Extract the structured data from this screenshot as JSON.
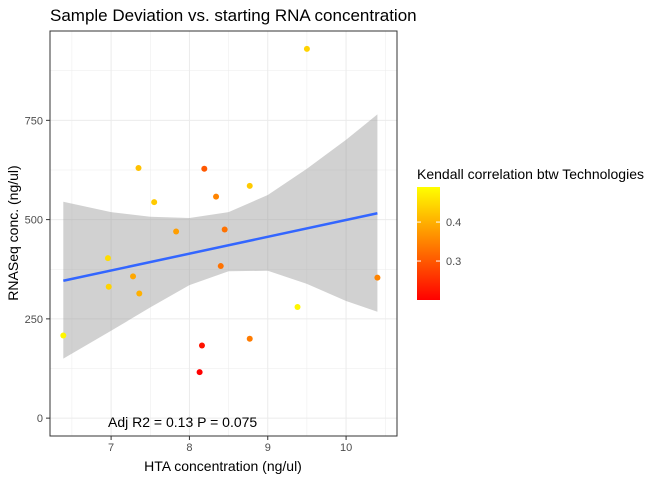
{
  "chart_data": {
    "type": "scatter",
    "title": "Sample Deviation vs. starting RNA concentration",
    "xlabel": "HTA concentration (ng/ul)",
    "ylabel": "RNASeq conc. (ng/ul)",
    "xlim": [
      6.22,
      10.65
    ],
    "ylim": [
      -45,
      975
    ],
    "xticks": [
      7,
      8,
      9,
      10
    ],
    "yticks": [
      0,
      250,
      500,
      750
    ],
    "grid": true,
    "points": [
      {
        "x": 6.39,
        "y": 208,
        "kendall": 0.48
      },
      {
        "x": 6.96,
        "y": 403,
        "kendall": 0.45
      },
      {
        "x": 6.97,
        "y": 331,
        "kendall": 0.44
      },
      {
        "x": 7.28,
        "y": 357,
        "kendall": 0.39
      },
      {
        "x": 7.35,
        "y": 630,
        "kendall": 0.42
      },
      {
        "x": 7.36,
        "y": 314,
        "kendall": 0.4
      },
      {
        "x": 7.55,
        "y": 544,
        "kendall": 0.43
      },
      {
        "x": 7.83,
        "y": 470,
        "kendall": 0.38
      },
      {
        "x": 8.13,
        "y": 116,
        "kendall": 0.2
      },
      {
        "x": 8.16,
        "y": 183,
        "kendall": 0.22
      },
      {
        "x": 8.19,
        "y": 628,
        "kendall": 0.3
      },
      {
        "x": 8.34,
        "y": 558,
        "kendall": 0.35
      },
      {
        "x": 8.4,
        "y": 383,
        "kendall": 0.33
      },
      {
        "x": 8.45,
        "y": 475,
        "kendall": 0.33
      },
      {
        "x": 8.77,
        "y": 200,
        "kendall": 0.34
      },
      {
        "x": 8.77,
        "y": 585,
        "kendall": 0.43
      },
      {
        "x": 9.38,
        "y": 280,
        "kendall": 0.48
      },
      {
        "x": 9.5,
        "y": 930,
        "kendall": 0.44
      },
      {
        "x": 10.4,
        "y": 354,
        "kendall": 0.35
      }
    ],
    "fit_line": {
      "x": [
        6.39,
        10.4
      ],
      "y": [
        346,
        516
      ],
      "color": "#3366ff"
    },
    "confidence_band": {
      "x": [
        6.39,
        7.0,
        7.5,
        8.0,
        8.5,
        9.0,
        9.5,
        10.0,
        10.4
      ],
      "upper": [
        545,
        519,
        507,
        504,
        519,
        562,
        628,
        701,
        765
      ],
      "lower": [
        150,
        220,
        279,
        335,
        370,
        371,
        338,
        295,
        268
      ]
    },
    "legend": {
      "title": "Kendall correlation btw Technologies",
      "position": "right",
      "range": [
        0.2,
        0.49
      ],
      "ticks": [
        0.3,
        0.4
      ],
      "low_color": "#ff0000",
      "high_color": "#ffff00"
    },
    "annotation": "Adj R2 =  0.13  P = 0.075"
  }
}
